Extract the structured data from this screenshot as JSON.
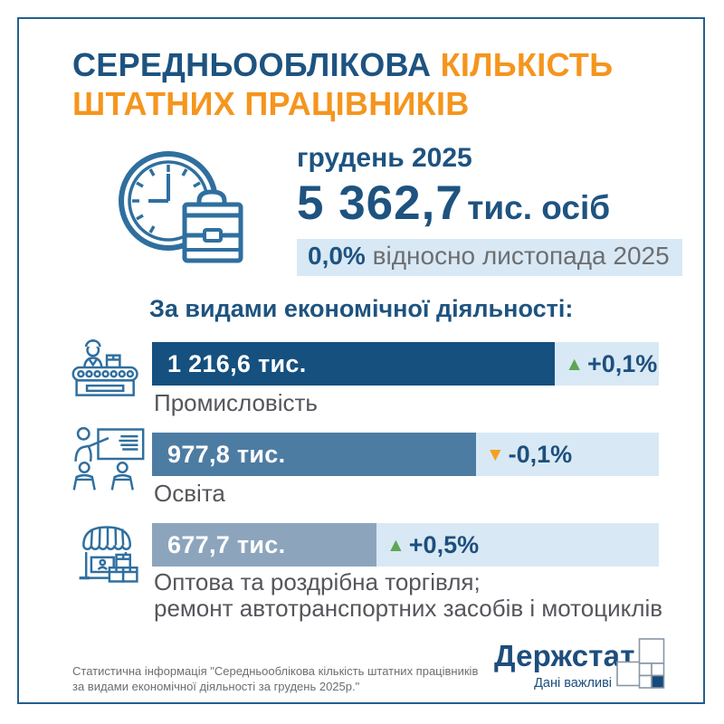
{
  "title": {
    "line1_navy": "СЕРЕДНЬООБЛІКОВА",
    "line1_orange": "КІЛЬКІСТЬ",
    "line2_orange": "ШТАТНИХ ПРАЦІВНИКІВ"
  },
  "hero": {
    "period": "грудень 2025",
    "total_value": "5 362,7",
    "total_unit": "тис. осіб",
    "change_value": "0,0%",
    "change_label": "відносно листопада 2025"
  },
  "section_heading": "За видами економічної діяльності:",
  "rows": [
    {
      "icon": "factory-conveyor-worker-icon",
      "value_label": "1 216,6 тис.",
      "bar_color": "#15507f",
      "delta_symbol": "▲",
      "delta_text": "+0,1%",
      "delta_color": "#5fa552",
      "category_line1": "Промисловість",
      "category_line2": ""
    },
    {
      "icon": "teacher-classroom-icon",
      "value_label": "977,8 тис.",
      "bar_color": "#4d7ca3",
      "delta_symbol": "▼",
      "delta_text": "-0,1%",
      "delta_color": "#f5a01f",
      "category_line1": "Освіта",
      "category_line2": ""
    },
    {
      "icon": "shop-boxes-icon",
      "value_label": "677,7 тис.",
      "bar_color": "#8ca5bd",
      "delta_symbol": "▲",
      "delta_text": "+0,5%",
      "delta_color": "#5fa552",
      "category_line1": "Оптова та роздрібна торгівля;",
      "category_line2": "ремонт автотранспортних засобів і мотоциклів"
    }
  ],
  "footer": {
    "note_line1": "Статистична інформація \"Середньооблікова кількість штатних працівників",
    "note_line2": "за видами економічної діяльності за грудень 2025р.\"",
    "logo_text": "Держстат",
    "logo_tagline": "Дані важливі"
  },
  "colors": {
    "navy": "#1e5380",
    "orange": "#f5951d",
    "track_light_blue": "#d8e9f5",
    "bar_dark": "#15507f",
    "bar_medium": "#4d7ca3",
    "bar_light": "#8ca5bd",
    "delta_up_green": "#5fa552",
    "delta_down_orange": "#f5a01f",
    "gray_text": "#6d6e71",
    "icon_stroke": "#2f6f9f",
    "frame_border": "#24608e"
  },
  "chart_data": {
    "type": "bar",
    "orientation": "horizontal",
    "title": "Середньооблікова кількість штатних працівників за видами економічної діяльності, грудень 2025",
    "categories": [
      "Промисловість",
      "Освіта",
      "Оптова та роздрібна торгівля; ремонт автотранспортних засобів і мотоциклів"
    ],
    "values": [
      1216.6,
      977.8,
      677.7
    ],
    "value_unit": "тис. осіб",
    "total": 5362.7,
    "total_unit": "тис. осіб",
    "total_change_vs_prev_month_pct": 0.0,
    "change_vs_prev_month_pct": [
      0.1,
      -0.1,
      0.5
    ],
    "max_bar_fraction_of_track": 0.795
  }
}
